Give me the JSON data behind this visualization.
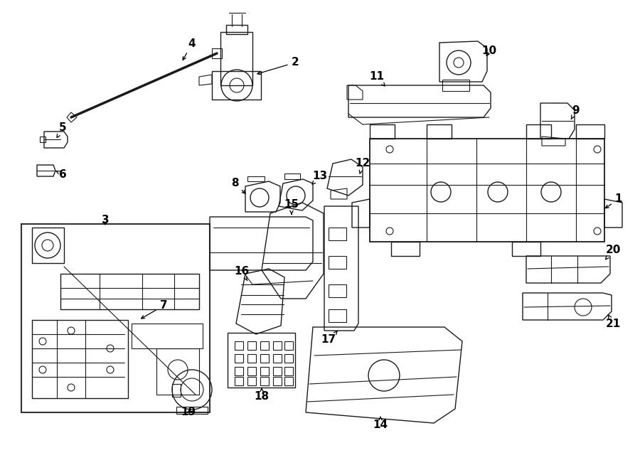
{
  "background_color": "#ffffff",
  "line_color": "#1a1a1a",
  "fig_width": 9.0,
  "fig_height": 6.61,
  "dpi": 100,
  "border_color": "#cccccc"
}
